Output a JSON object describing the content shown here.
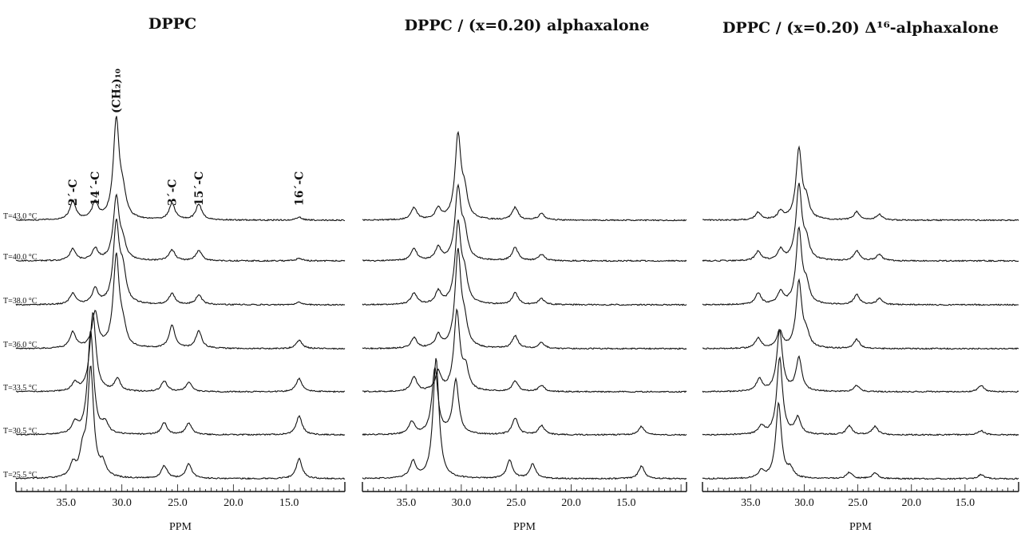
{
  "chart_data": [
    {
      "type": "line",
      "title": "DPPC",
      "xlabel": "PPM",
      "x_reversed": true,
      "xlim": [
        39.5,
        10.0
      ],
      "x_ticks": [
        35.0,
        30.0,
        25.0,
        20.0,
        15.0
      ],
      "x_tick_labels": [
        "35.0",
        "30.0",
        "25.0",
        "20.0",
        "15.0"
      ],
      "peak_labels": [
        {
          "text": "2´-C",
          "ppm": 34.4
        },
        {
          "text": "14´-C",
          "ppm": 32.4
        },
        {
          "text": "(CH₂)₁₀",
          "ppm": 30.5
        },
        {
          "text": "3´-C",
          "ppm": 25.5
        },
        {
          "text": "15´-C",
          "ppm": 23.1
        },
        {
          "text": "16´-C",
          "ppm": 14.1
        }
      ],
      "series": [
        {
          "name": "T=43.0 °C",
          "peaks": [
            [
              34.4,
              0.45
            ],
            [
              32.4,
              0.4
            ],
            [
              30.5,
              2.4
            ],
            [
              29.9,
              0.5
            ],
            [
              25.5,
              0.4
            ],
            [
              23.1,
              0.38
            ],
            [
              14.1,
              0.07
            ]
          ]
        },
        {
          "name": "T=40.0 °C",
          "peaks": [
            [
              34.4,
              0.28
            ],
            [
              32.4,
              0.28
            ],
            [
              30.5,
              1.5
            ],
            [
              29.9,
              0.35
            ],
            [
              25.5,
              0.26
            ],
            [
              23.1,
              0.24
            ],
            [
              14.1,
              0.06
            ]
          ]
        },
        {
          "name": "T=38.0 °C",
          "peaks": [
            [
              34.4,
              0.26
            ],
            [
              32.4,
              0.36
            ],
            [
              30.5,
              1.9
            ],
            [
              29.9,
              0.7
            ],
            [
              25.5,
              0.26
            ],
            [
              23.1,
              0.23
            ],
            [
              14.1,
              0.06
            ]
          ]
        },
        {
          "name": "T=36.0 °C",
          "peaks": [
            [
              34.4,
              0.38
            ],
            [
              32.4,
              0.85
            ],
            [
              30.5,
              2.2
            ],
            [
              29.9,
              0.4
            ],
            [
              25.5,
              0.55
            ],
            [
              23.1,
              0.42
            ],
            [
              14.1,
              0.2
            ]
          ]
        },
        {
          "name": "T=33.5 °C",
          "peaks": [
            [
              34.2,
              0.2
            ],
            [
              32.6,
              1.9
            ],
            [
              30.4,
              0.3
            ],
            [
              26.2,
              0.25
            ],
            [
              24.0,
              0.22
            ],
            [
              14.1,
              0.32
            ]
          ]
        },
        {
          "name": "T=30.5 °C",
          "peaks": [
            [
              34.2,
              0.25
            ],
            [
              32.8,
              2.5
            ],
            [
              31.5,
              0.25
            ],
            [
              26.2,
              0.28
            ],
            [
              24.0,
              0.28
            ],
            [
              14.1,
              0.45
            ]
          ]
        },
        {
          "name": "T=25.5 °C",
          "peaks": [
            [
              34.4,
              0.3
            ],
            [
              33.5,
              0.55
            ],
            [
              32.8,
              2.6
            ],
            [
              31.7,
              0.3
            ],
            [
              26.2,
              0.3
            ],
            [
              24.0,
              0.35
            ],
            [
              14.1,
              0.48
            ]
          ]
        }
      ]
    },
    {
      "type": "line",
      "title": "DPPC / (x=0.20) alphaxalone",
      "xlabel": "PPM",
      "x_reversed": true,
      "xlim": [
        39.0,
        9.5
      ],
      "x_ticks": [
        35.0,
        30.0,
        25.0,
        20.0,
        15.0
      ],
      "x_tick_labels": [
        "35.0",
        "30.0",
        "25.0",
        "20.0",
        "15.0"
      ],
      "series": [
        {
          "name": "T=43.0 °C",
          "peaks": [
            [
              34.3,
              0.3
            ],
            [
              32.1,
              0.25
            ],
            [
              30.3,
              2.0
            ],
            [
              29.7,
              0.55
            ],
            [
              25.1,
              0.3
            ],
            [
              22.7,
              0.16
            ]
          ]
        },
        {
          "name": "T=40.0 °C",
          "peaks": [
            [
              34.3,
              0.28
            ],
            [
              32.1,
              0.3
            ],
            [
              30.3,
              1.7
            ],
            [
              29.7,
              0.6
            ],
            [
              25.1,
              0.32
            ],
            [
              22.7,
              0.15
            ]
          ]
        },
        {
          "name": "T=38.0 °C",
          "peaks": [
            [
              34.3,
              0.28
            ],
            [
              32.1,
              0.3
            ],
            [
              30.3,
              1.9
            ],
            [
              29.7,
              0.6
            ],
            [
              25.1,
              0.28
            ],
            [
              22.7,
              0.14
            ]
          ]
        },
        {
          "name": "T=36.0 °C",
          "peaks": [
            [
              34.3,
              0.25
            ],
            [
              32.1,
              0.3
            ],
            [
              30.3,
              2.3
            ],
            [
              29.7,
              0.5
            ],
            [
              25.1,
              0.3
            ],
            [
              22.7,
              0.14
            ]
          ]
        },
        {
          "name": "T=33.5 °C",
          "peaks": [
            [
              34.3,
              0.35
            ],
            [
              32.1,
              0.45
            ],
            [
              30.4,
              1.9
            ],
            [
              29.6,
              0.5
            ],
            [
              25.1,
              0.25
            ],
            [
              22.7,
              0.15
            ]
          ]
        },
        {
          "name": "T=30.5 °C",
          "peaks": [
            [
              34.5,
              0.3
            ],
            [
              32.4,
              1.6
            ],
            [
              30.5,
              1.3
            ],
            [
              25.1,
              0.4
            ],
            [
              22.7,
              0.22
            ],
            [
              13.6,
              0.2
            ]
          ]
        },
        {
          "name": "T=25.5 °C",
          "peaks": [
            [
              34.4,
              0.4
            ],
            [
              32.3,
              2.9
            ],
            [
              25.6,
              0.45
            ],
            [
              23.5,
              0.35
            ],
            [
              13.6,
              0.3
            ]
          ]
        }
      ]
    },
    {
      "type": "line",
      "title": "DPPC / (x=0.20) Δ¹⁶-alphaxalone",
      "xlabel": "PPM",
      "x_reversed": true,
      "xlim": [
        39.5,
        10.0
      ],
      "x_ticks": [
        35.0,
        30.0,
        25.0,
        20.0,
        15.0
      ],
      "x_tick_labels": [
        "35.0",
        "30.0",
        "25.0",
        "20.0",
        "15.0"
      ],
      "series": [
        {
          "name": "T=43.0 °C",
          "peaks": [
            [
              34.3,
              0.18
            ],
            [
              32.2,
              0.2
            ],
            [
              30.5,
              1.7
            ],
            [
              29.8,
              0.4
            ],
            [
              25.1,
              0.2
            ],
            [
              23.0,
              0.14
            ]
          ]
        },
        {
          "name": "T=40.0 °C",
          "peaks": [
            [
              34.3,
              0.22
            ],
            [
              32.2,
              0.25
            ],
            [
              30.5,
              1.8
            ],
            [
              29.8,
              0.4
            ],
            [
              25.1,
              0.24
            ],
            [
              23.0,
              0.15
            ]
          ]
        },
        {
          "name": "T=38.0 °C",
          "peaks": [
            [
              34.3,
              0.28
            ],
            [
              32.2,
              0.3
            ],
            [
              30.5,
              1.8
            ],
            [
              29.8,
              0.4
            ],
            [
              25.1,
              0.24
            ],
            [
              23.0,
              0.15
            ]
          ]
        },
        {
          "name": "T=36.0 °C",
          "peaks": [
            [
              34.3,
              0.25
            ],
            [
              32.3,
              0.4
            ],
            [
              30.5,
              1.6
            ],
            [
              29.8,
              0.3
            ],
            [
              25.1,
              0.22
            ]
          ]
        },
        {
          "name": "T=33.5 °C",
          "peaks": [
            [
              34.2,
              0.3
            ],
            [
              32.3,
              1.45
            ],
            [
              30.5,
              0.8
            ],
            [
              25.1,
              0.15
            ],
            [
              13.5,
              0.15
            ]
          ]
        },
        {
          "name": "T=30.5 °C",
          "peaks": [
            [
              34.0,
              0.2
            ],
            [
              32.3,
              1.85
            ],
            [
              30.6,
              0.4
            ],
            [
              25.8,
              0.22
            ],
            [
              23.4,
              0.2
            ],
            [
              13.5,
              0.1
            ]
          ]
        },
        {
          "name": "T=25.5 °C",
          "peaks": [
            [
              34.0,
              0.18
            ],
            [
              32.4,
              1.8
            ],
            [
              31.3,
              0.2
            ],
            [
              25.8,
              0.15
            ],
            [
              23.4,
              0.14
            ],
            [
              13.5,
              0.1
            ]
          ]
        }
      ]
    }
  ]
}
